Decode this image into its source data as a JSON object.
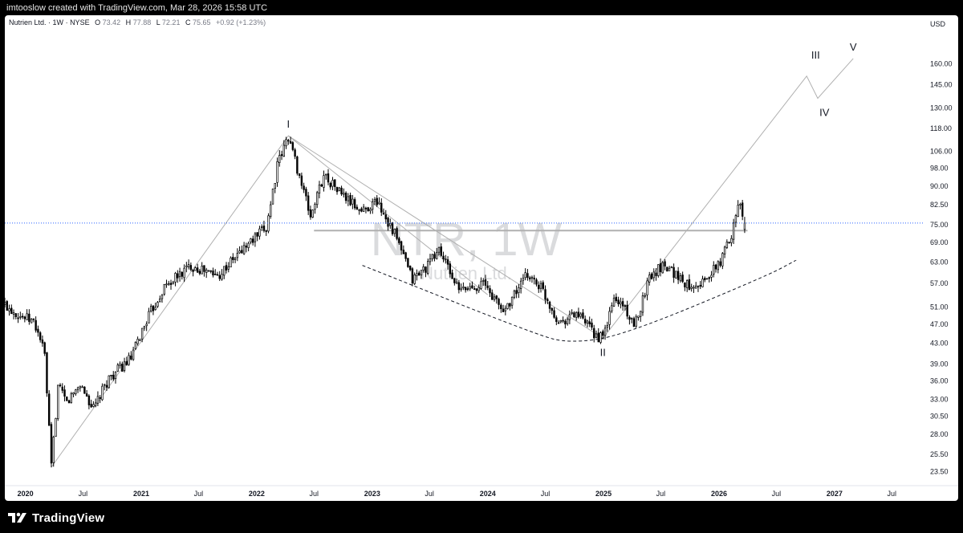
{
  "header": {
    "credit": "imtooslow created with TradingView.com, Mar 28, 2026 15:58 UTC"
  },
  "legend": {
    "name": "Nutrien Ltd.",
    "interval": "1W",
    "exchange": "NYSE",
    "open_label": "O",
    "open": "73.42",
    "high_label": "H",
    "high": "77.88",
    "low_label": "L",
    "low": "72.21",
    "close_label": "C",
    "close": "75.65",
    "change": "+0.92 (+1.23%)"
  },
  "watermark": {
    "symbol": "NTR, 1W",
    "company": "Nutrien Ltd."
  },
  "footer": {
    "brand": "TradingView"
  },
  "colors": {
    "background": "#ffffff",
    "frame": "#000000",
    "candle_up": "#ffffff",
    "candle_down": "#000000",
    "wick": "#000000",
    "price_line": "#2962ff",
    "drawing": "#b0b0b0",
    "text": "#131722"
  },
  "chart_data": {
    "type": "candlestick",
    "currency": "USD",
    "scale": "log",
    "y_ticks": [
      23.5,
      25.5,
      28.0,
      30.5,
      33.0,
      36.0,
      39.0,
      43.0,
      47.0,
      51.0,
      57.0,
      63.0,
      69.0,
      75.0,
      82.5,
      90.0,
      98.0,
      106.0,
      118.0,
      130.0,
      145.0,
      160.0
    ],
    "y_tick_labels": [
      "23.50",
      "25.50",
      "28.00",
      "30.50",
      "33.00",
      "36.00",
      "39.00",
      "43.00",
      "47.00",
      "51.00",
      "57.00",
      "63.00",
      "69.00",
      "75.00",
      "82.50",
      "90.00",
      "98.00",
      "106.00",
      "118.00",
      "130.00",
      "145.00",
      "160.00"
    ],
    "ylim": [
      22.0,
      185.0
    ],
    "x_range": [
      "2019-10-28",
      "2027-09-27"
    ],
    "x_ticks": [
      {
        "date": "2020-01-01",
        "label": "2020",
        "major": true
      },
      {
        "date": "2020-07-01",
        "label": "Jul",
        "major": false
      },
      {
        "date": "2021-01-01",
        "label": "2021",
        "major": true
      },
      {
        "date": "2021-07-01",
        "label": "Jul",
        "major": false
      },
      {
        "date": "2022-01-01",
        "label": "2022",
        "major": true
      },
      {
        "date": "2022-07-01",
        "label": "Jul",
        "major": false
      },
      {
        "date": "2023-01-01",
        "label": "2023",
        "major": true
      },
      {
        "date": "2023-07-01",
        "label": "Jul",
        "major": false
      },
      {
        "date": "2024-01-01",
        "label": "2024",
        "major": true
      },
      {
        "date": "2024-07-01",
        "label": "Jul",
        "major": false
      },
      {
        "date": "2025-01-01",
        "label": "2025",
        "major": true
      },
      {
        "date": "2025-07-01",
        "label": "Jul",
        "major": false
      },
      {
        "date": "2026-01-01",
        "label": "2026",
        "major": true
      },
      {
        "date": "2026-07-01",
        "label": "Jul",
        "major": false
      },
      {
        "date": "2027-01-01",
        "label": "2027",
        "major": true
      },
      {
        "date": "2027-07-01",
        "label": "Jul",
        "major": false
      }
    ],
    "last_close": 75.65,
    "price_path": [
      [
        "2019-10-28",
        51.5
      ],
      [
        "2019-12-16",
        49.0
      ],
      [
        "2020-01-27",
        47.5
      ],
      [
        "2020-02-17",
        44.0
      ],
      [
        "2020-03-02",
        40.5
      ],
      [
        "2020-03-23",
        24.0
      ],
      [
        "2020-04-13",
        35.0
      ],
      [
        "2020-05-11",
        32.5
      ],
      [
        "2020-06-22",
        35.5
      ],
      [
        "2020-08-03",
        31.5
      ],
      [
        "2020-09-21",
        36.5
      ],
      [
        "2020-11-30",
        40.0
      ],
      [
        "2021-01-18",
        48.0
      ],
      [
        "2021-03-15",
        56.0
      ],
      [
        "2021-06-07",
        62.0
      ],
      [
        "2021-08-30",
        59.0
      ],
      [
        "2021-11-29",
        68.0
      ],
      [
        "2022-01-31",
        74.0
      ],
      [
        "2022-03-07",
        99.0
      ],
      [
        "2022-04-11",
        114.0
      ],
      [
        "2022-05-09",
        98.0
      ],
      [
        "2022-06-20",
        78.0
      ],
      [
        "2022-08-01",
        95.0
      ],
      [
        "2022-10-10",
        85.0
      ],
      [
        "2022-11-28",
        80.0
      ],
      [
        "2023-01-16",
        84.0
      ],
      [
        "2023-03-13",
        72.0
      ],
      [
        "2023-05-08",
        58.0
      ],
      [
        "2023-06-26",
        62.0
      ],
      [
        "2023-07-31",
        67.0
      ],
      [
        "2023-10-02",
        55.0
      ],
      [
        "2023-12-18",
        57.0
      ],
      [
        "2024-02-19",
        50.0
      ],
      [
        "2024-05-06",
        59.5
      ],
      [
        "2024-06-17",
        56.0
      ],
      [
        "2024-08-12",
        47.5
      ],
      [
        "2024-10-07",
        49.5
      ],
      [
        "2024-12-09",
        44.5
      ],
      [
        "2024-12-30",
        44.0
      ],
      [
        "2025-02-03",
        53.0
      ],
      [
        "2025-03-10",
        51.0
      ],
      [
        "2025-04-07",
        46.0
      ],
      [
        "2025-05-26",
        59.0
      ],
      [
        "2025-07-14",
        62.5
      ],
      [
        "2025-09-22",
        56.5
      ],
      [
        "2025-11-17",
        57.5
      ],
      [
        "2026-01-05",
        63.0
      ],
      [
        "2026-02-09",
        72.0
      ],
      [
        "2026-03-02",
        84.0
      ],
      [
        "2026-03-23",
        75.65
      ]
    ],
    "annotations": [
      {
        "label": "I",
        "date": "2022-04-11",
        "price": 114.0
      },
      {
        "label": "II",
        "date": "2024-12-30",
        "price": 44.0
      },
      {
        "label": "III",
        "date": "2026-11-02",
        "price": 158.0
      },
      {
        "label": "IV",
        "date": "2026-11-30",
        "price": 136.0
      },
      {
        "label": "V",
        "date": "2027-03-01",
        "price": 164.0
      }
    ],
    "drawings": {
      "wave_path": [
        [
          "2020-03-23",
          24.0
        ],
        [
          "2022-04-11",
          114.0
        ],
        [
          "2024-12-30",
          44.0
        ],
        [
          "2026-10-05",
          151.0
        ],
        [
          "2026-11-09",
          136.0
        ],
        [
          "2027-03-01",
          164.0
        ]
      ],
      "downtrend": [
        [
          "2022-04-11",
          114.0
        ],
        [
          "2024-01-01",
          54.0
        ]
      ],
      "neckline": [
        [
          "2022-07-01",
          73.0
        ],
        [
          "2026-04-01",
          73.0
        ]
      ],
      "rounded_bottom": [
        [
          "2022-12-01",
          62.0
        ],
        [
          "2024-06-01",
          44.8
        ],
        [
          "2024-09-15",
          43.0
        ],
        [
          "2025-03-01",
          44.5
        ],
        [
          "2026-06-01",
          59.0
        ],
        [
          "2026-09-01",
          63.5
        ]
      ]
    }
  }
}
